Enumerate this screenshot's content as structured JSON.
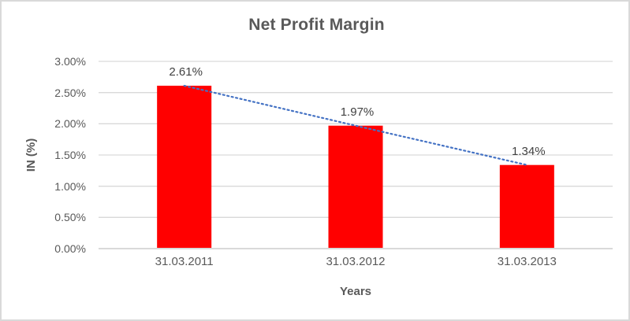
{
  "chart_data": {
    "type": "bar",
    "title": "Net Profit Margin",
    "xlabel": "Years",
    "ylabel": "IN (%)",
    "categories": [
      "31.03.2011",
      "31.03.2012",
      "31.03.2013"
    ],
    "values": [
      2.61,
      1.97,
      1.34
    ],
    "data_labels": [
      "2.61%",
      "1.97%",
      "1.34%"
    ],
    "ylim": [
      0,
      3
    ],
    "yticks": [
      0,
      0.5,
      1,
      1.5,
      2,
      2.5,
      3
    ],
    "ytick_labels": [
      "0.00%",
      "0.50%",
      "1.00%",
      "1.50%",
      "2.00%",
      "2.50%",
      "3.00%"
    ],
    "grid": true,
    "legend": "none",
    "trendline": {
      "type": "linear",
      "style": "dotted"
    },
    "colors": {
      "bar": "#ff0000",
      "trendline": "#4472c4",
      "gridline": "#d9d9d9",
      "axis_line": "#d9d9d9",
      "tick_text": "#595959",
      "data_label_text": "#404040",
      "title_text": "#595959",
      "frame_border": "#d9d9d9",
      "background": "#ffffff"
    }
  }
}
